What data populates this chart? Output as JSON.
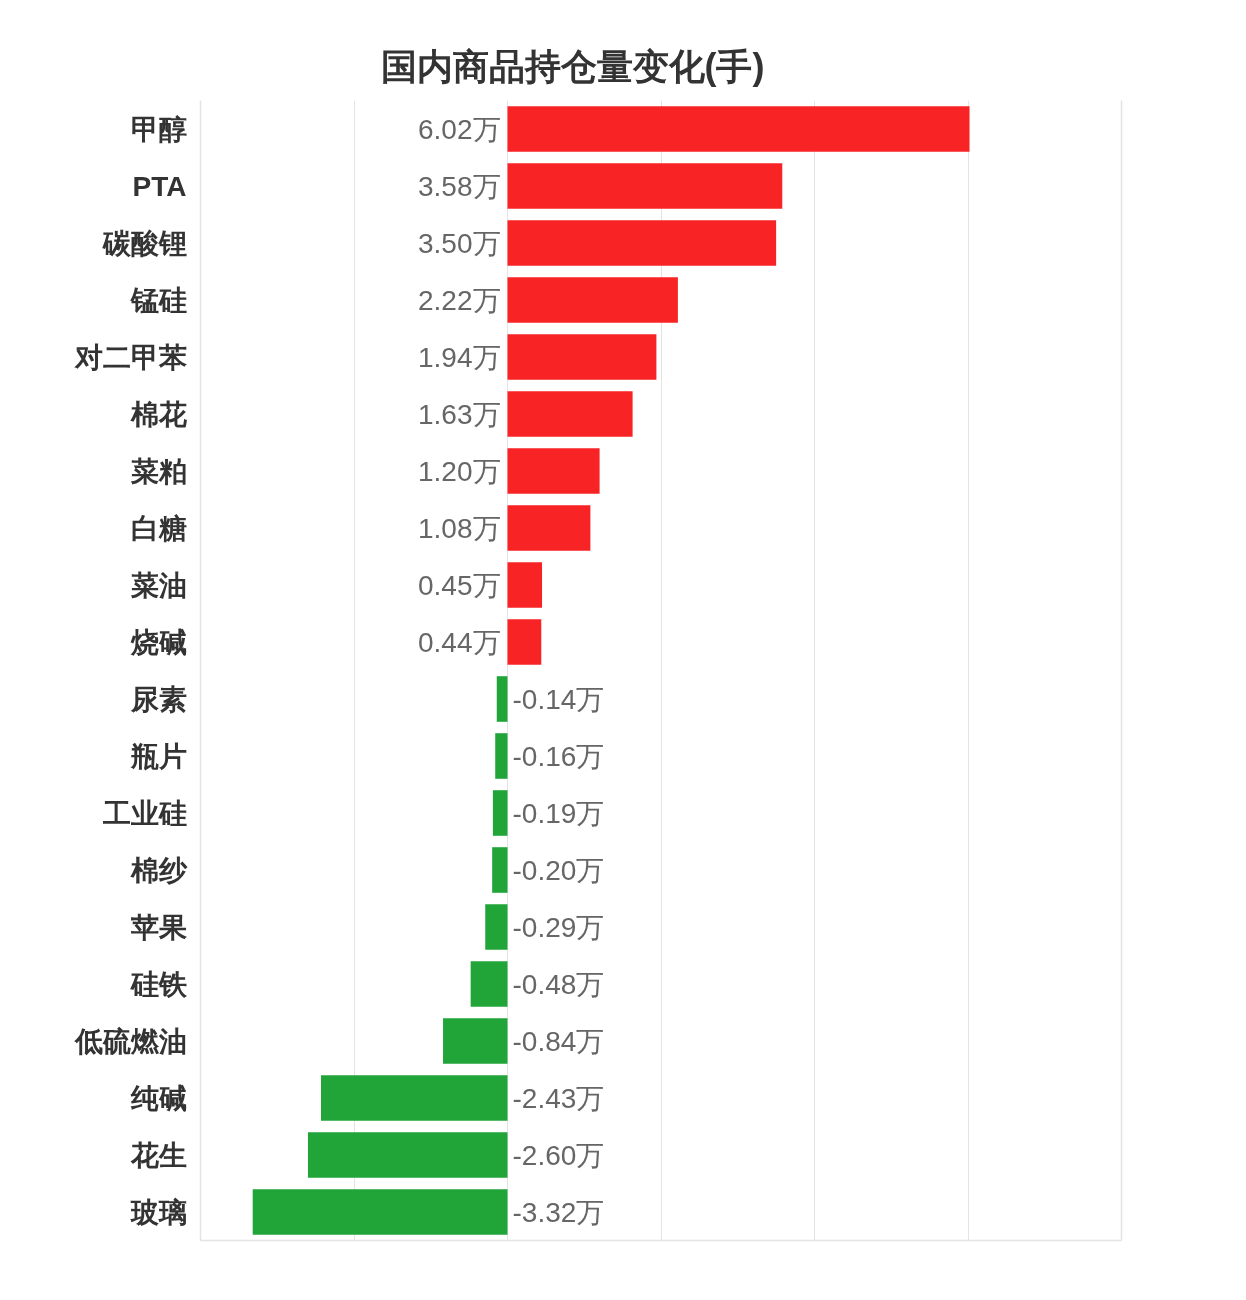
{
  "chart_data": {
    "type": "bar",
    "orientation": "horizontal",
    "title": "国内商品持仓量变化(手)",
    "categories": [
      "甲醇",
      "PTA",
      "碳酸锂",
      "锰硅",
      "对二甲苯",
      "棉花",
      "菜粕",
      "白糖",
      "菜油",
      "烧碱",
      "尿素",
      "瓶片",
      "工业硅",
      "棉纱",
      "苹果",
      "硅铁",
      "低硫燃油",
      "纯碱",
      "花生",
      "玻璃"
    ],
    "values": [
      6.02,
      3.58,
      3.5,
      2.22,
      1.94,
      1.63,
      1.2,
      1.08,
      0.45,
      0.44,
      -0.14,
      -0.16,
      -0.19,
      -0.2,
      -0.29,
      -0.48,
      -0.84,
      -2.43,
      -2.6,
      -3.32
    ],
    "value_labels": [
      "6.02万",
      "3.58万",
      "3.50万",
      "2.22万",
      "1.94万",
      "1.63万",
      "1.20万",
      "1.08万",
      "0.45万",
      "0.44万",
      "-0.14万",
      "-0.16万",
      "-0.19万",
      "-0.20万",
      "-0.29万",
      "-0.48万",
      "-0.84万",
      "-2.43万",
      "-2.60万",
      "-3.32万"
    ],
    "colors": [
      "#f82324",
      "#f82324",
      "#f82324",
      "#f82324",
      "#f82324",
      "#f82324",
      "#f82324",
      "#f82324",
      "#f82324",
      "#f82324",
      "#21a539",
      "#21a539",
      "#21a539",
      "#21a539",
      "#21a539",
      "#21a539",
      "#21a539",
      "#21a539",
      "#21a539",
      "#21a539"
    ],
    "xlim": [
      -4,
      8
    ],
    "xticks": [
      {
        "value": -4,
        "label": null
      },
      {
        "value": -2,
        "label": null
      },
      {
        "value": 0,
        "label": null
      },
      {
        "value": 2,
        "label": null
      },
      {
        "value": 4,
        "label": null
      },
      {
        "value": 6,
        "label": null
      },
      {
        "value": 8,
        "label": null
      }
    ],
    "grid": "x",
    "tick_labels": "y"
  }
}
